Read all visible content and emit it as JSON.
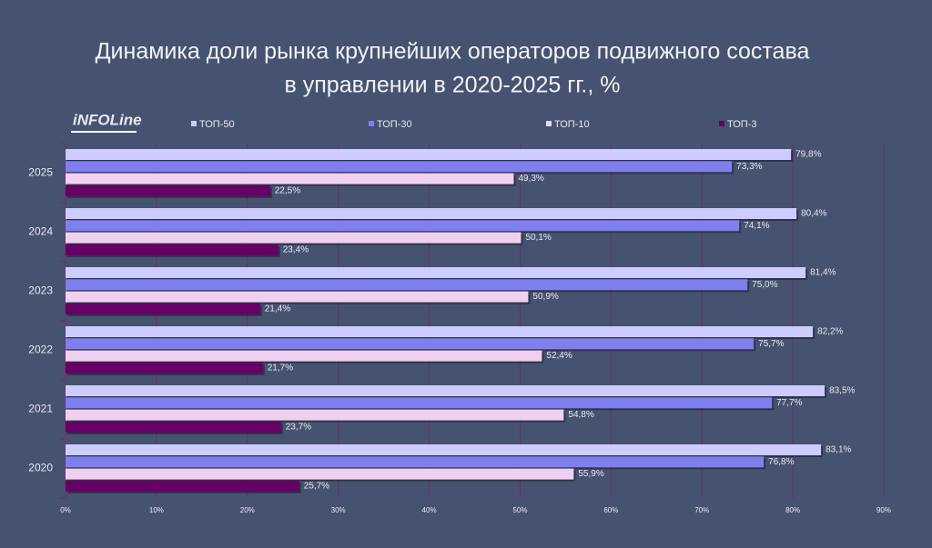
{
  "logo": "iNFOLine",
  "chart_data": {
    "type": "hbar",
    "title": [
      "Динамика доли рынка крупнейших операторов подвижного состава",
      "в управлении  в 2020-2025 гг., %"
    ],
    "categories": [
      "2025",
      "2024",
      "2023",
      "2022",
      "2021",
      "2020"
    ],
    "series": [
      {
        "name": "ТОП-50",
        "color": "#ccccff",
        "values": [
          79.8,
          80.4,
          81.4,
          82.2,
          83.5,
          83.1
        ],
        "value_labels": [
          "79,8%",
          "80,4%",
          "81,4%",
          "82,2%",
          "83,5%",
          "83,1%"
        ]
      },
      {
        "name": "ТОП-30",
        "color": "#7f7ff0",
        "values": [
          73.3,
          74.1,
          75.0,
          75.7,
          77.7,
          76.8
        ],
        "value_labels": [
          "73,3%",
          "74,1%",
          "75,0%",
          "75,7%",
          "77,7%",
          "76,8%"
        ]
      },
      {
        "name": "ТОП-10",
        "color": "#f0d0f0",
        "values": [
          49.3,
          50.1,
          50.9,
          52.4,
          54.8,
          55.9
        ],
        "value_labels": [
          "49,3%",
          "50,1%",
          "50,9%",
          "52,4%",
          "54,8%",
          "55,9%"
        ]
      },
      {
        "name": "ТОП-3",
        "color": "#660066",
        "values": [
          22.5,
          23.4,
          21.4,
          21.7,
          23.7,
          25.7
        ],
        "value_labels": [
          "22,5%",
          "23,4%",
          "21,4%",
          "21,7%",
          "23,7%",
          "25,7%"
        ]
      }
    ],
    "xlim": [
      0,
      90
    ],
    "xticks": [
      {
        "value": 0,
        "label": "0%"
      },
      {
        "value": 10,
        "label": "10%"
      },
      {
        "value": 20,
        "label": "20%"
      },
      {
        "value": 30,
        "label": "30%"
      },
      {
        "value": 40,
        "label": "40%"
      },
      {
        "value": 50,
        "label": "50%"
      },
      {
        "value": 60,
        "label": "60%"
      },
      {
        "value": 70,
        "label": "70%"
      },
      {
        "value": 80,
        "label": "80%"
      },
      {
        "value": 90,
        "label": "90%"
      }
    ],
    "grid": true
  }
}
